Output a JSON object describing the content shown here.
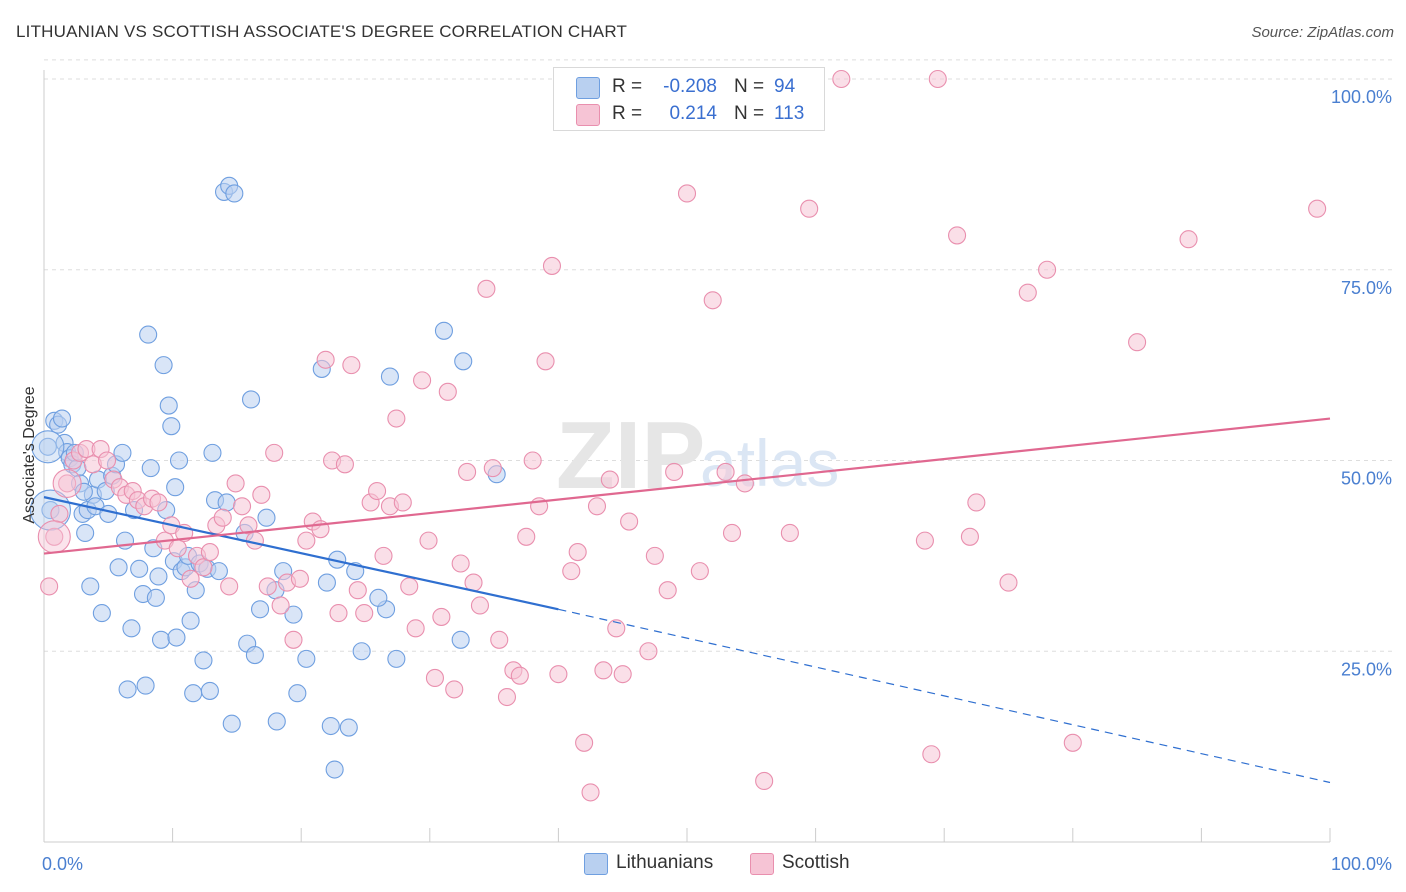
{
  "chart_data": {
    "type": "scatter",
    "title": "LITHUANIAN VS SCOTTISH ASSOCIATE'S DEGREE CORRELATION CHART",
    "source": "Source: ZipAtlas.com",
    "ylabel": "Associate's Degree",
    "xlim": [
      0,
      100
    ],
    "ylim": [
      0,
      105
    ],
    "x_tick_labels": [
      "0.0%",
      "100.0%"
    ],
    "y_ticks": [
      25,
      50,
      75,
      100
    ],
    "y_tick_labels": [
      "25.0%",
      "50.0%",
      "75.0%",
      "100.0%"
    ],
    "grid": true,
    "watermark": [
      "ZIP",
      "atlas"
    ],
    "legend": {
      "position": "top-center",
      "rows": [
        {
          "r_label": "R =",
          "r_value": "-0.208",
          "n_label": "N =",
          "n_value": "94"
        },
        {
          "r_label": "R =",
          "r_value": "0.214",
          "n_label": "N =",
          "n_value": "113"
        }
      ]
    },
    "series": [
      {
        "name": "Lithuanians",
        "color": "#6f9fe0",
        "fill": "#b9d0f0",
        "trend_color": "#2f6fd0",
        "trend": {
          "x0": 0,
          "y0": 45.2,
          "x1": 40,
          "y1": 30.5,
          "dash_to_x": 100,
          "dash_to_y": 7.8
        },
        "points": [
          [
            0.3,
            51.8
          ],
          [
            0.5,
            43.5
          ],
          [
            0.8,
            55.2
          ],
          [
            1.1,
            54.7
          ],
          [
            1.4,
            55.5
          ],
          [
            1.6,
            52.3
          ],
          [
            1.8,
            51.1
          ],
          [
            2.0,
            50.3
          ],
          [
            2.2,
            49.5
          ],
          [
            2.4,
            51.0
          ],
          [
            2.6,
            49.0
          ],
          [
            2.8,
            47.0
          ],
          [
            3.0,
            43.0
          ],
          [
            3.2,
            40.5
          ],
          [
            3.4,
            43.5
          ],
          [
            3.6,
            33.5
          ],
          [
            3.8,
            45.5
          ],
          [
            4.0,
            44.0
          ],
          [
            4.2,
            47.5
          ],
          [
            4.5,
            30.0
          ],
          [
            4.8,
            46.0
          ],
          [
            5.0,
            43.0
          ],
          [
            5.3,
            48.0
          ],
          [
            5.6,
            49.5
          ],
          [
            5.8,
            36.0
          ],
          [
            6.1,
            51.0
          ],
          [
            6.3,
            39.5
          ],
          [
            6.5,
            20.0
          ],
          [
            6.8,
            28.0
          ],
          [
            7.0,
            43.5
          ],
          [
            7.4,
            35.8
          ],
          [
            7.7,
            32.5
          ],
          [
            7.9,
            20.5
          ],
          [
            8.1,
            66.5
          ],
          [
            8.3,
            49.0
          ],
          [
            8.5,
            38.5
          ],
          [
            8.7,
            32.0
          ],
          [
            8.9,
            34.8
          ],
          [
            9.1,
            26.5
          ],
          [
            9.3,
            62.5
          ],
          [
            9.5,
            43.5
          ],
          [
            9.7,
            57.2
          ],
          [
            9.9,
            54.5
          ],
          [
            10.1,
            36.8
          ],
          [
            10.3,
            26.8
          ],
          [
            10.5,
            50.0
          ],
          [
            10.7,
            35.5
          ],
          [
            11.0,
            36.0
          ],
          [
            11.2,
            37.5
          ],
          [
            11.4,
            29.0
          ],
          [
            11.6,
            19.5
          ],
          [
            11.8,
            33.0
          ],
          [
            12.1,
            36.5
          ],
          [
            12.4,
            23.8
          ],
          [
            12.7,
            35.8
          ],
          [
            12.9,
            19.8
          ],
          [
            13.1,
            51.0
          ],
          [
            13.3,
            44.8
          ],
          [
            13.6,
            35.5
          ],
          [
            14.0,
            85.2
          ],
          [
            14.4,
            86.0
          ],
          [
            14.8,
            85.0
          ],
          [
            14.2,
            44.5
          ],
          [
            14.6,
            15.5
          ],
          [
            15.6,
            40.5
          ],
          [
            15.8,
            26.0
          ],
          [
            16.1,
            58.0
          ],
          [
            16.4,
            24.5
          ],
          [
            16.8,
            30.5
          ],
          [
            17.3,
            42.5
          ],
          [
            18.1,
            15.8
          ],
          [
            18.6,
            35.5
          ],
          [
            19.4,
            29.8
          ],
          [
            19.7,
            19.5
          ],
          [
            20.4,
            24.0
          ],
          [
            21.6,
            62.0
          ],
          [
            22.3,
            15.2
          ],
          [
            22.8,
            37.0
          ],
          [
            22.6,
            9.5
          ],
          [
            23.7,
            15.0
          ],
          [
            24.2,
            35.5
          ],
          [
            24.7,
            25.0
          ],
          [
            26.6,
            30.5
          ],
          [
            26.9,
            61.0
          ],
          [
            27.4,
            24.0
          ],
          [
            31.1,
            67.0
          ],
          [
            32.4,
            26.5
          ],
          [
            32.6,
            63.0
          ],
          [
            35.2,
            48.2
          ],
          [
            22.0,
            34.0
          ],
          [
            18.0,
            33.0
          ],
          [
            26.0,
            32.0
          ],
          [
            3.1,
            45.9
          ],
          [
            10.2,
            46.5
          ]
        ],
        "sizes_big": [
          [
            0.3,
            51.8,
            16
          ],
          [
            0.5,
            43.5,
            20
          ]
        ]
      },
      {
        "name": "Scottish",
        "color": "#e98fae",
        "fill": "#f6c4d5",
        "trend_color": "#e06890",
        "trend": {
          "x0": 0,
          "y0": 37.8,
          "x1": 100,
          "y1": 55.5
        },
        "points": [
          [
            0.4,
            33.5
          ],
          [
            0.8,
            40.0
          ],
          [
            1.2,
            43.0
          ],
          [
            1.8,
            47.0
          ],
          [
            2.3,
            50.0
          ],
          [
            2.8,
            51.0
          ],
          [
            3.3,
            51.5
          ],
          [
            3.8,
            49.5
          ],
          [
            4.4,
            51.5
          ],
          [
            4.9,
            50.0
          ],
          [
            5.4,
            47.5
          ],
          [
            5.9,
            46.5
          ],
          [
            6.4,
            45.5
          ],
          [
            6.9,
            46.0
          ],
          [
            7.3,
            44.8
          ],
          [
            7.8,
            44.0
          ],
          [
            8.4,
            45.0
          ],
          [
            8.9,
            44.5
          ],
          [
            9.4,
            39.5
          ],
          [
            9.9,
            41.5
          ],
          [
            10.4,
            38.5
          ],
          [
            10.9,
            40.5
          ],
          [
            11.4,
            34.5
          ],
          [
            11.9,
            37.5
          ],
          [
            12.4,
            36.0
          ],
          [
            12.9,
            38.0
          ],
          [
            13.4,
            41.5
          ],
          [
            13.9,
            42.5
          ],
          [
            14.4,
            33.5
          ],
          [
            14.9,
            47.0
          ],
          [
            15.4,
            44.0
          ],
          [
            15.9,
            41.5
          ],
          [
            16.4,
            39.5
          ],
          [
            16.9,
            45.5
          ],
          [
            17.4,
            33.5
          ],
          [
            17.9,
            51.0
          ],
          [
            18.4,
            31.0
          ],
          [
            18.9,
            34.0
          ],
          [
            19.4,
            26.5
          ],
          [
            19.9,
            34.5
          ],
          [
            20.4,
            39.5
          ],
          [
            20.9,
            42.0
          ],
          [
            21.5,
            41.0
          ],
          [
            21.9,
            63.2
          ],
          [
            22.4,
            50.0
          ],
          [
            22.9,
            30.0
          ],
          [
            23.4,
            49.5
          ],
          [
            23.9,
            62.5
          ],
          [
            24.4,
            33.0
          ],
          [
            24.9,
            30.0
          ],
          [
            25.4,
            44.5
          ],
          [
            25.9,
            46.0
          ],
          [
            26.4,
            37.5
          ],
          [
            26.9,
            44.0
          ],
          [
            27.4,
            55.5
          ],
          [
            27.9,
            44.5
          ],
          [
            28.4,
            33.5
          ],
          [
            28.9,
            28.0
          ],
          [
            29.4,
            60.5
          ],
          [
            29.9,
            39.5
          ],
          [
            30.4,
            21.5
          ],
          [
            30.9,
            29.5
          ],
          [
            31.4,
            59.0
          ],
          [
            31.9,
            20.0
          ],
          [
            32.4,
            36.5
          ],
          [
            32.9,
            48.5
          ],
          [
            33.4,
            34.0
          ],
          [
            33.9,
            31.0
          ],
          [
            34.4,
            72.5
          ],
          [
            34.9,
            49.0
          ],
          [
            35.4,
            26.5
          ],
          [
            36.0,
            19.0
          ],
          [
            36.5,
            22.5
          ],
          [
            37.0,
            21.8
          ],
          [
            37.5,
            40.0
          ],
          [
            38.0,
            50.0
          ],
          [
            38.5,
            44.0
          ],
          [
            39.0,
            63.0
          ],
          [
            39.5,
            75.5
          ],
          [
            40.0,
            22.0
          ],
          [
            41.0,
            35.5
          ],
          [
            41.5,
            38.0
          ],
          [
            42.0,
            13.0
          ],
          [
            42.5,
            6.5
          ],
          [
            43.0,
            44.0
          ],
          [
            43.5,
            22.5
          ],
          [
            44.0,
            47.5
          ],
          [
            44.5,
            28.0
          ],
          [
            45.0,
            22.0
          ],
          [
            45.5,
            42.0
          ],
          [
            47.0,
            25.0
          ],
          [
            47.5,
            37.5
          ],
          [
            48.5,
            33.0
          ],
          [
            49.0,
            48.5
          ],
          [
            50.0,
            85.0
          ],
          [
            51.0,
            35.5
          ],
          [
            52.0,
            71.0
          ],
          [
            53.0,
            48.5
          ],
          [
            53.5,
            40.5
          ],
          [
            54.5,
            47.0
          ],
          [
            56.0,
            8.0
          ],
          [
            58.0,
            40.5
          ],
          [
            59.5,
            83.0
          ],
          [
            62.0,
            100.0
          ],
          [
            68.5,
            39.5
          ],
          [
            69.0,
            11.5
          ],
          [
            69.5,
            100.0
          ],
          [
            72.0,
            40.0
          ],
          [
            72.5,
            44.5
          ],
          [
            75.0,
            34.0
          ],
          [
            76.5,
            72.0
          ],
          [
            78.0,
            75.0
          ],
          [
            80.0,
            13.0
          ],
          [
            85.0,
            65.5
          ],
          [
            89.0,
            79.0
          ],
          [
            99.0,
            83.0
          ],
          [
            71.0,
            79.5
          ]
        ],
        "sizes_big": [
          [
            0.8,
            40.0,
            16
          ],
          [
            1.8,
            47.0,
            14
          ]
        ]
      }
    ]
  },
  "bottom_legend": {
    "items": [
      {
        "label": "Lithuanians",
        "fill": "#b9d0f0",
        "border": "#6f9fe0"
      },
      {
        "label": "Scottish",
        "fill": "#f6c4d5",
        "border": "#e98fae"
      }
    ]
  }
}
